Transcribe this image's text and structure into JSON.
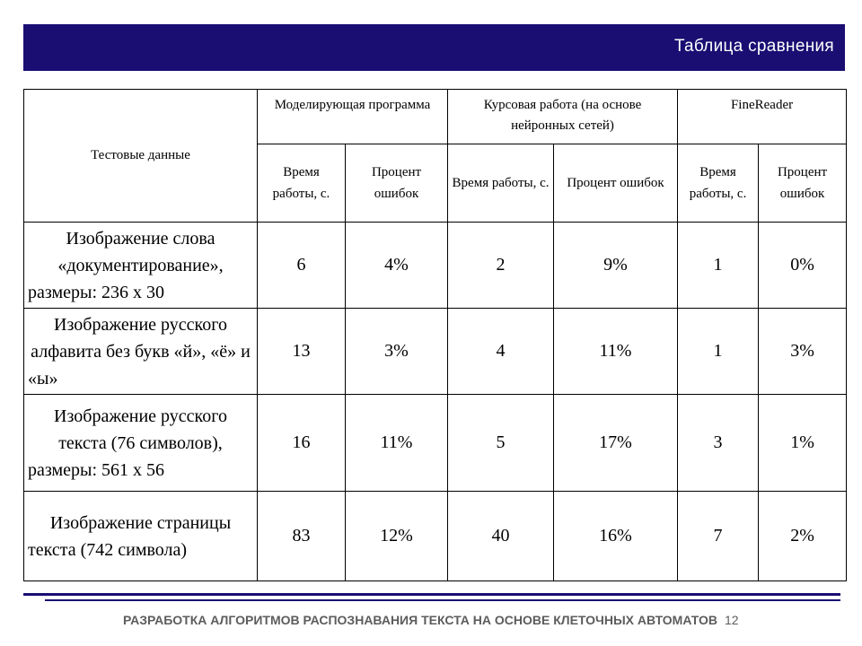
{
  "slide": {
    "title": "Таблица сравнения",
    "footer": "РАЗРАБОТКА АЛГОРИТМОВ РАСПОЗНАВАНИЯ ТЕКСТА НА ОСНОВЕ КЛЕТОЧНЫХ АВТОМАТОВ",
    "page_number": "12"
  },
  "table": {
    "test_header": "Тестовые данные",
    "groups": [
      {
        "label": "Моделирующая программа",
        "time": "Время работы, с.",
        "error": "Процент ошибок"
      },
      {
        "label": "Курсовая работа (на основе нейронных сетей)",
        "time": "Время работы, с.",
        "error": "Процент ошибок"
      },
      {
        "label": "FineReader",
        "time": "Время работы, с.",
        "error": "Процент ошибок"
      }
    ],
    "rows": [
      {
        "label": "Изображение слова «документирование», размеры: 236 х 30",
        "values": [
          "6",
          "4%",
          "2",
          "9%",
          "1",
          "0%"
        ]
      },
      {
        "label": "Изображение русского алфавита без букв «й», «ё» и «ы»",
        "values": [
          "13",
          "3%",
          "4",
          "11%",
          "1",
          "3%"
        ]
      },
      {
        "label": "Изображение русского текста (76 символов), размеры: 561 х 56",
        "values": [
          "16",
          "11%",
          "5",
          "17%",
          "3",
          "1%"
        ]
      },
      {
        "label": "Изображение страницы текста (742 символа)",
        "values": [
          "83",
          "12%",
          "40",
          "16%",
          "7",
          "2%"
        ]
      }
    ]
  },
  "colors": {
    "accent": "#1a0e73",
    "footer_text": "#5c5c5c"
  }
}
